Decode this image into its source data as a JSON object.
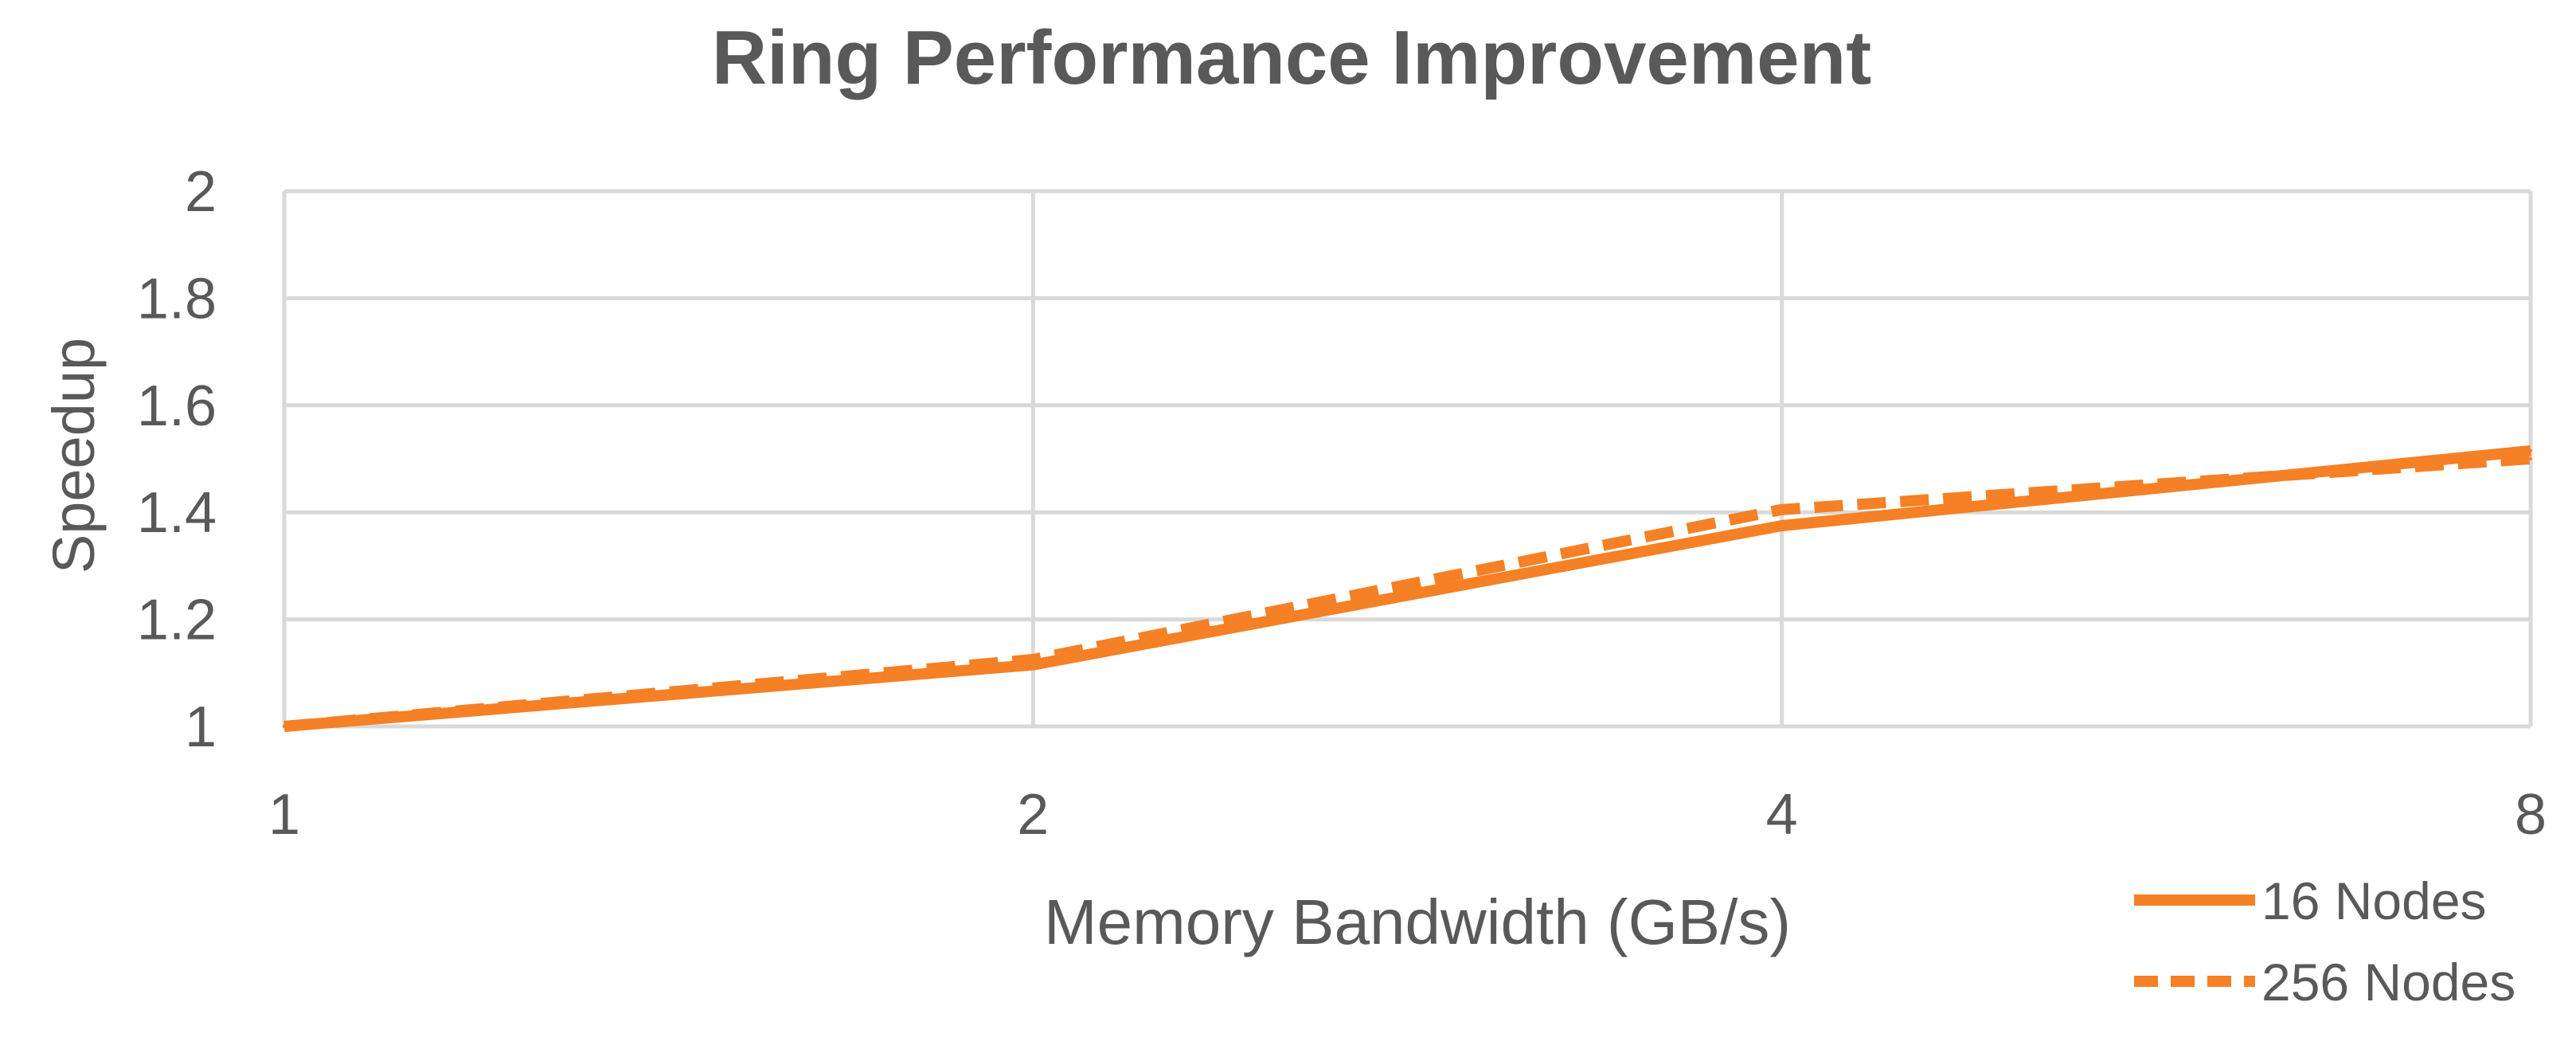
{
  "chart_data": {
    "type": "line",
    "title": "Ring Performance Improvement",
    "xlabel": "Memory Bandwidth (GB/s)",
    "ylabel": "Speedup",
    "x_scale": "log2",
    "x": [
      1,
      2,
      4,
      8
    ],
    "x_tick_labels": [
      "1",
      "2",
      "4",
      "8"
    ],
    "ylim": [
      1,
      2
    ],
    "y_ticks": [
      1,
      1.2,
      1.4,
      1.6,
      1.8,
      2
    ],
    "y_tick_labels": [
      "1",
      "1.2",
      "1.4",
      "1.6",
      "1.8",
      "2"
    ],
    "grid": true,
    "legend_position": "bottom-right",
    "series": [
      {
        "name": "16 Nodes",
        "style": "solid",
        "color": "#F58025",
        "values": [
          1.0,
          1.115,
          1.375,
          1.515
        ]
      },
      {
        "name": "256 Nodes",
        "style": "dashed",
        "color": "#F58025",
        "values": [
          1.0,
          1.125,
          1.405,
          1.5
        ]
      }
    ]
  }
}
